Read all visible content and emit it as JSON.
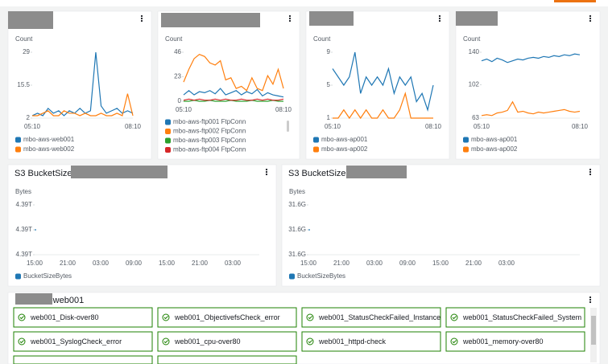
{
  "chart_data": [
    {
      "type": "line",
      "ylabel": "Count",
      "categories": [
        "05:10",
        null,
        null,
        null,
        null,
        null,
        null,
        null,
        null,
        null,
        null,
        null,
        null,
        null,
        null,
        null,
        null,
        null,
        null,
        "08:10"
      ],
      "ylim": [
        2,
        29
      ],
      "yticks": [
        2,
        15.5,
        29
      ],
      "series": [
        {
          "name": "mbo-aws-web001",
          "color": "#1f77b4",
          "values": [
            3,
            4,
            3,
            6,
            4,
            5,
            3,
            5,
            4,
            6,
            4,
            5,
            29,
            7,
            4,
            5,
            6,
            4,
            5,
            4
          ]
        },
        {
          "name": "mbo-aws-web002",
          "color": "#ff7f0e",
          "values": [
            3,
            3,
            4,
            5,
            3,
            3,
            5,
            4,
            4,
            3,
            4,
            3,
            3,
            4,
            3,
            3,
            4,
            3,
            12,
            3
          ]
        }
      ]
    },
    {
      "type": "line",
      "ylabel": "Count",
      "categories": [
        "05:10",
        null,
        null,
        null,
        null,
        null,
        null,
        null,
        null,
        null,
        null,
        null,
        null,
        null,
        null,
        null,
        null,
        null,
        null,
        "08:10"
      ],
      "ylim": [
        0,
        46
      ],
      "yticks": [
        0,
        23,
        46
      ],
      "series": [
        {
          "name": "mbo-aws-ftp001 FtpConn",
          "color": "#1f77b4",
          "values": [
            6,
            10,
            6,
            9,
            8,
            10,
            7,
            12,
            6,
            8,
            10,
            6,
            9,
            7,
            11,
            5,
            8,
            6,
            5,
            4
          ]
        },
        {
          "name": "mbo-aws-ftp002 FtpConn",
          "color": "#ff7f0e",
          "values": [
            18,
            30,
            40,
            44,
            42,
            36,
            34,
            38,
            20,
            22,
            12,
            14,
            10,
            22,
            12,
            10,
            24,
            16,
            30,
            12
          ]
        },
        {
          "name": "mbo-aws-ftp003 FtpConn",
          "color": "#2ca02c",
          "values": [
            0,
            0,
            1,
            0,
            0,
            1,
            0,
            0,
            0,
            1,
            0,
            0,
            0,
            1,
            0,
            0,
            0,
            1,
            0,
            0
          ]
        },
        {
          "name": "mbo-aws-ftp004 FtpConn",
          "color": "#d62728",
          "values": [
            1,
            2,
            1,
            2,
            1,
            1,
            2,
            1,
            2,
            1,
            1,
            2,
            1,
            1,
            2,
            1,
            2,
            1,
            1,
            2
          ]
        }
      ]
    },
    {
      "type": "line",
      "ylabel": "Count",
      "categories": [
        "05:10",
        null,
        null,
        null,
        null,
        null,
        null,
        null,
        null,
        null,
        null,
        null,
        null,
        null,
        null,
        null,
        null,
        null,
        "08:10"
      ],
      "ylim": [
        1,
        9
      ],
      "yticks": [
        1,
        5,
        9
      ],
      "series": [
        {
          "name": "mbo-aws-ap001",
          "color": "#1f77b4",
          "values": [
            7,
            6,
            5,
            6,
            9,
            4,
            6,
            5,
            6,
            5,
            7,
            4,
            6,
            5,
            6,
            3,
            4,
            2,
            5
          ]
        },
        {
          "name": "mbo-aws-ap002",
          "color": "#ff7f0e",
          "values": [
            1,
            1,
            2,
            1,
            2,
            1,
            2,
            1,
            1,
            2,
            1,
            1,
            2,
            4,
            1,
            1,
            1,
            1,
            1
          ]
        }
      ]
    },
    {
      "type": "line",
      "ylabel": "Count",
      "categories": [
        "05:10",
        null,
        null,
        null,
        null,
        null,
        null,
        null,
        null,
        null,
        null,
        null,
        null,
        null,
        null,
        null,
        null,
        null,
        null,
        "08:10"
      ],
      "ylim": [
        63,
        140
      ],
      "yticks": [
        63,
        102,
        140
      ],
      "series": [
        {
          "name": "mbo-aws-ap001",
          "color": "#1f77b4",
          "values": [
            130,
            132,
            129,
            133,
            131,
            128,
            130,
            132,
            131,
            133,
            134,
            133,
            135,
            134,
            136,
            135,
            137,
            136,
            138,
            137
          ]
        },
        {
          "name": "mbo-aws-ap002",
          "color": "#ff7f0e",
          "values": [
            66,
            67,
            66,
            69,
            70,
            72,
            82,
            70,
            71,
            69,
            68,
            70,
            69,
            70,
            71,
            72,
            73,
            71,
            70,
            71
          ]
        }
      ]
    },
    {
      "type": "line",
      "title": "S3 BucketSize",
      "ylabel": "Bytes",
      "categories": [
        "15:00",
        "21:00",
        "03:00",
        "09:00",
        "15:00",
        "21:00",
        "03:00"
      ],
      "ylim": [
        4389800000000,
        4390200000000
      ],
      "yticks": [
        {
          "value": 4389800000000,
          "label": "4.39T"
        },
        {
          "value": 4390000000000,
          "label": "4.39T"
        },
        {
          "value": 4390200000000,
          "label": "4.39T"
        }
      ],
      "series": [
        {
          "name": "BucketSizeBytes",
          "color": "#1f77b4",
          "values": [
            4390000000000,
            null,
            null,
            null,
            null,
            null,
            null
          ]
        }
      ]
    },
    {
      "type": "line",
      "title": "S3 BucketSize",
      "ylabel": "Bytes",
      "categories": [
        "15:00",
        "21:00",
        "03:00",
        "09:00",
        "15:00",
        "21:00",
        "03:00"
      ],
      "ylim": [
        31580000000,
        31620000000
      ],
      "yticks": [
        {
          "value": 31580000000,
          "label": "31.6G"
        },
        {
          "value": 31600000000,
          "label": "31.6G"
        },
        {
          "value": 31620000000,
          "label": "31.6G"
        }
      ],
      "series": [
        {
          "name": "BucketSizeBytes",
          "color": "#1f77b4",
          "values": [
            31600000000,
            null,
            null,
            null,
            null,
            null,
            null
          ]
        }
      ]
    }
  ],
  "alarms": {
    "title": "-web001",
    "items": [
      "web001_Disk-over80",
      "web001_ObjectivefsCheck_error",
      "web001_StatusCheckFailed_Instance",
      "web001_StatusCheckFailed_System",
      "web001_SyslogCheck_error",
      "web001_cpu-over80",
      "web001_httpd-check",
      "web001_memory-over80"
    ]
  }
}
